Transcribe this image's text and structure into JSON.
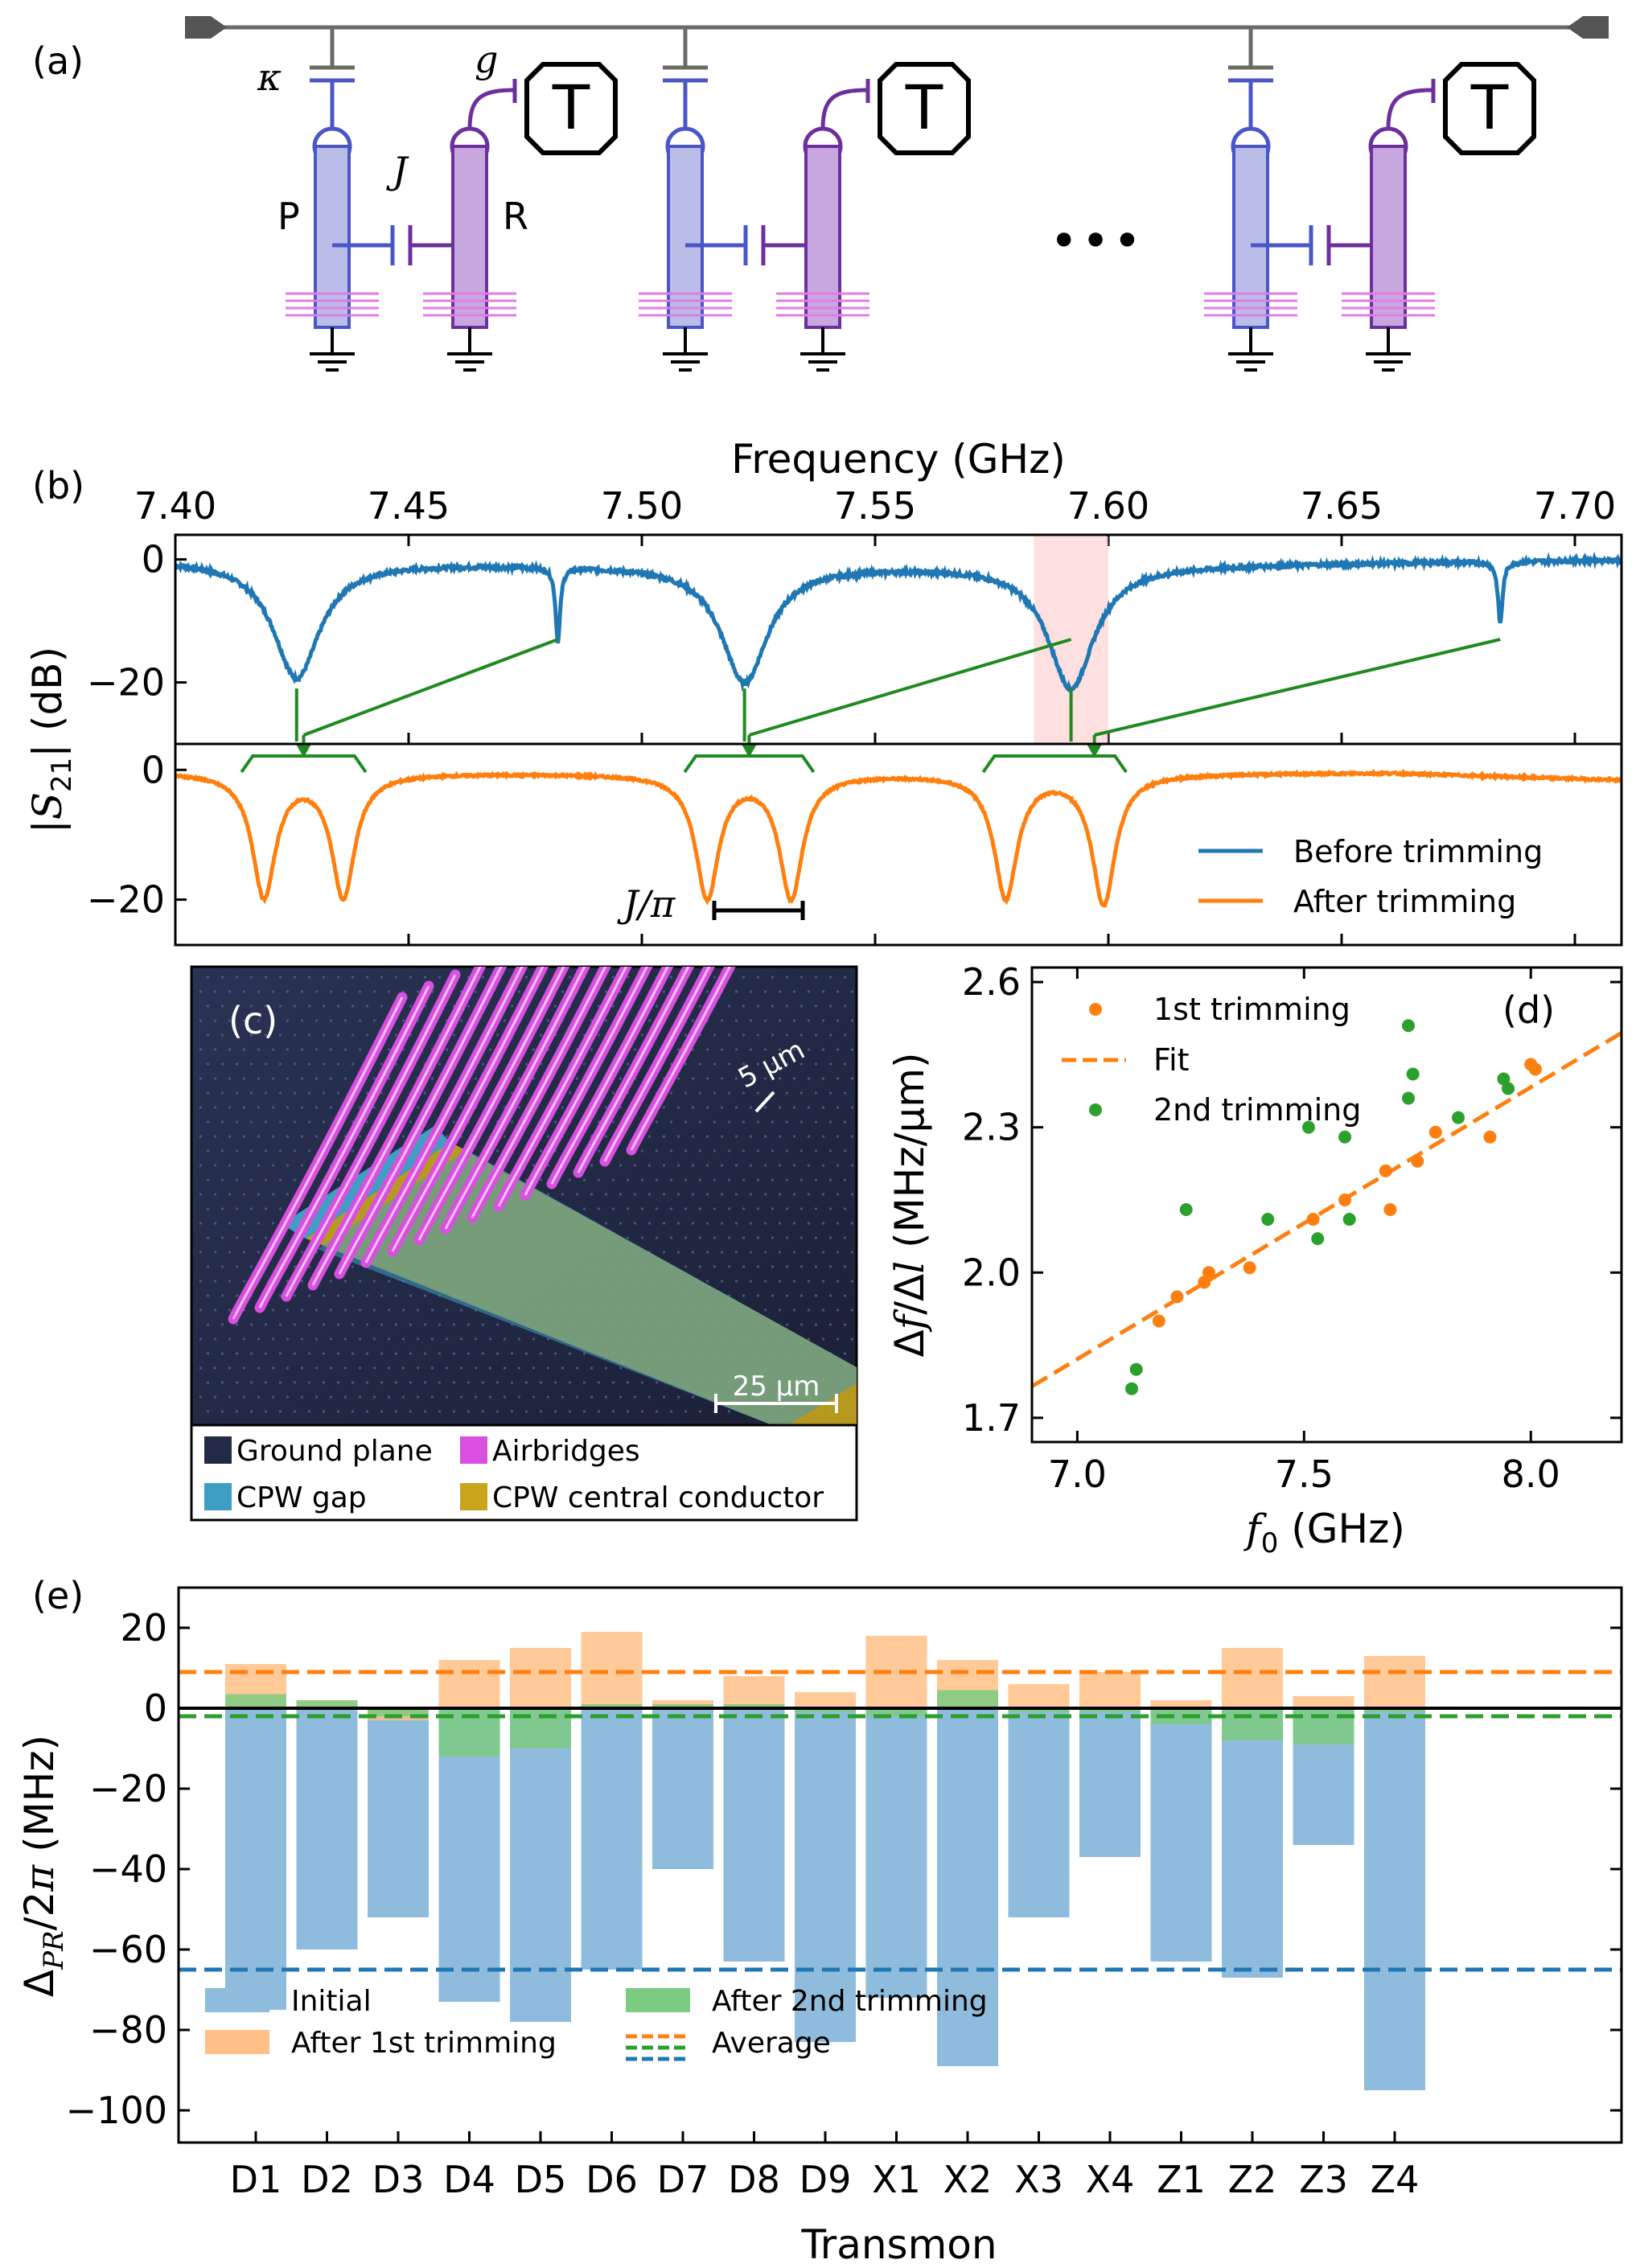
{
  "panel_a": {
    "letter": "(a)",
    "labels": {
      "kappa": "κ",
      "g": "g",
      "J": "J",
      "P": "P",
      "R": "R",
      "T": "T",
      "ellipsis": "•••"
    }
  },
  "chart_data": [
    {
      "id": "b",
      "type": "line",
      "letter": "(b)",
      "xlabel": "Frequency (GHz)",
      "ylabel": "|S21| (dB)",
      "xlim": [
        7.4,
        7.71
      ],
      "xticks": [
        "7.40",
        "7.45",
        "7.50",
        "7.55",
        "7.60",
        "7.65",
        "7.70"
      ],
      "top": {
        "ylim": [
          -30,
          4
        ],
        "yticks": [
          "0",
          "−20"
        ],
        "series": {
          "name": "Before trimming",
          "color": "#1f77b4",
          "dips": [
            {
              "f": 7.426,
              "depth": 19,
              "width": 0.006
            },
            {
              "f": 7.482,
              "depth": 12,
              "width": 0.0006
            },
            {
              "f": 7.522,
              "depth": 19,
              "width": 0.006
            },
            {
              "f": 7.592,
              "depth": 20,
              "width": 0.006
            },
            {
              "f": 7.684,
              "depth": 10,
              "width": 0.0006
            }
          ]
        },
        "highlight": [
          7.584,
          7.6
        ]
      },
      "bottom": {
        "ylim": [
          -27,
          4
        ],
        "yticks": [
          "0",
          "−20"
        ],
        "series": {
          "name": "After trimming",
          "color": "#ff7f0e",
          "dips": [
            {
              "f": 7.419,
              "depth": 19,
              "width": 0.003
            },
            {
              "f": 7.436,
              "depth": 19,
              "width": 0.003
            },
            {
              "f": 7.514,
              "depth": 19,
              "width": 0.003
            },
            {
              "f": 7.532,
              "depth": 19,
              "width": 0.003
            },
            {
              "f": 7.578,
              "depth": 19,
              "width": 0.003
            },
            {
              "f": 7.599,
              "depth": 20,
              "width": 0.003
            }
          ]
        },
        "annotation": "J/π"
      },
      "legend": [
        "Before trimming",
        "After trimming"
      ]
    },
    {
      "id": "c",
      "type": "image",
      "letter": "(c)",
      "annotations": {
        "scale_small": "5 µm",
        "scale_large": "25 µm"
      },
      "legend": [
        {
          "label": "Ground plane",
          "color": "#232a45"
        },
        {
          "label": "Airbridges",
          "color": "#d94fe0"
        },
        {
          "label": "CPW gap",
          "color": "#3f9ec4"
        },
        {
          "label": "CPW central conductor",
          "color": "#c9a51c"
        }
      ]
    },
    {
      "id": "d",
      "type": "scatter",
      "letter": "(d)",
      "xlabel": "f0 (GHz)",
      "ylabel": "Δf/Δl (MHz/µm)",
      "xlim": [
        6.9,
        8.2
      ],
      "ylim": [
        1.65,
        2.63
      ],
      "xticks": [
        7.0,
        7.5,
        8.0
      ],
      "yticks": [
        1.7,
        2.0,
        2.3,
        2.6
      ],
      "series": [
        {
          "name": "1st trimming",
          "color": "#ff7f0e",
          "x": [
            7.18,
            7.22,
            7.28,
            7.29,
            7.38,
            7.52,
            7.59,
            7.68,
            7.69,
            7.75,
            7.79,
            7.91,
            8.0,
            8.01
          ],
          "y": [
            1.9,
            1.95,
            1.98,
            2.0,
            2.01,
            2.11,
            2.15,
            2.21,
            2.13,
            2.23,
            2.29,
            2.28,
            2.43,
            2.42
          ]
        },
        {
          "name": "Fit",
          "color": "#ff7f0e",
          "style": "dashed",
          "x": [
            6.9,
            8.2
          ],
          "y": [
            1.765,
            2.495
          ]
        },
        {
          "name": "2nd trimming",
          "color": "#2ca02c",
          "x": [
            7.12,
            7.13,
            7.24,
            7.42,
            7.51,
            7.53,
            7.59,
            7.6,
            7.73,
            7.74,
            7.73,
            7.84,
            7.94,
            7.95
          ],
          "y": [
            1.76,
            1.8,
            2.13,
            2.11,
            2.3,
            2.07,
            2.28,
            2.11,
            2.51,
            2.41,
            2.36,
            2.32,
            2.4,
            2.38
          ]
        }
      ],
      "legend": [
        "1st trimming",
        "Fit",
        "2nd trimming"
      ]
    },
    {
      "id": "e",
      "type": "bar",
      "letter": "(e)",
      "xlabel": "Transmon",
      "ylabel": "ΔPR/2π (MHz)",
      "ylim": [
        -108,
        30
      ],
      "yticks": [
        20,
        0,
        -20,
        -40,
        -60,
        -80,
        -100
      ],
      "categories": [
        "D1",
        "D2",
        "D3",
        "D4",
        "D5",
        "D6",
        "D7",
        "D8",
        "D9",
        "X1",
        "X2",
        "X3",
        "X4",
        "Z1",
        "Z2",
        "Z3",
        "Z4"
      ],
      "category_colors": [
        "#e377c2",
        "#e377c2",
        "#e377c2",
        "#d62728",
        "#d62728",
        "#d62728",
        "#e377c2",
        "#e377c2",
        "#e377c2",
        "#1f77b4",
        "#1f77b4",
        "#1f77b4",
        "#1f77b4",
        "#2ca02c",
        "#2ca02c",
        "#2ca02c",
        "#2ca02c"
      ],
      "series": [
        {
          "name": "Initial",
          "color": "#8fbcdc",
          "values": [
            -75,
            -60,
            -52,
            -73,
            -78,
            -65,
            -40,
            -63,
            -83,
            -72,
            -89,
            -52,
            -37,
            -63,
            -67,
            -34,
            -95
          ]
        },
        {
          "name": "After 1st trimming",
          "color": "#ffbf86",
          "values": [
            11,
            2,
            -3,
            12,
            15,
            19,
            2,
            8,
            4,
            18,
            12,
            6,
            9,
            2,
            15,
            3,
            13
          ]
        },
        {
          "name": "After 2nd trimming",
          "color": "#7ccb83",
          "values": [
            3.5,
            2,
            -2,
            -12,
            -10,
            1,
            1,
            1,
            -1,
            -2,
            4.5,
            -1,
            -1,
            -4,
            -8,
            -9,
            -1
          ]
        }
      ],
      "averages": {
        "initial": -65,
        "first": 9,
        "second": -2
      },
      "legend": [
        "Initial",
        "After 1st trimming",
        "After 2nd trimming",
        "Average"
      ]
    }
  ]
}
